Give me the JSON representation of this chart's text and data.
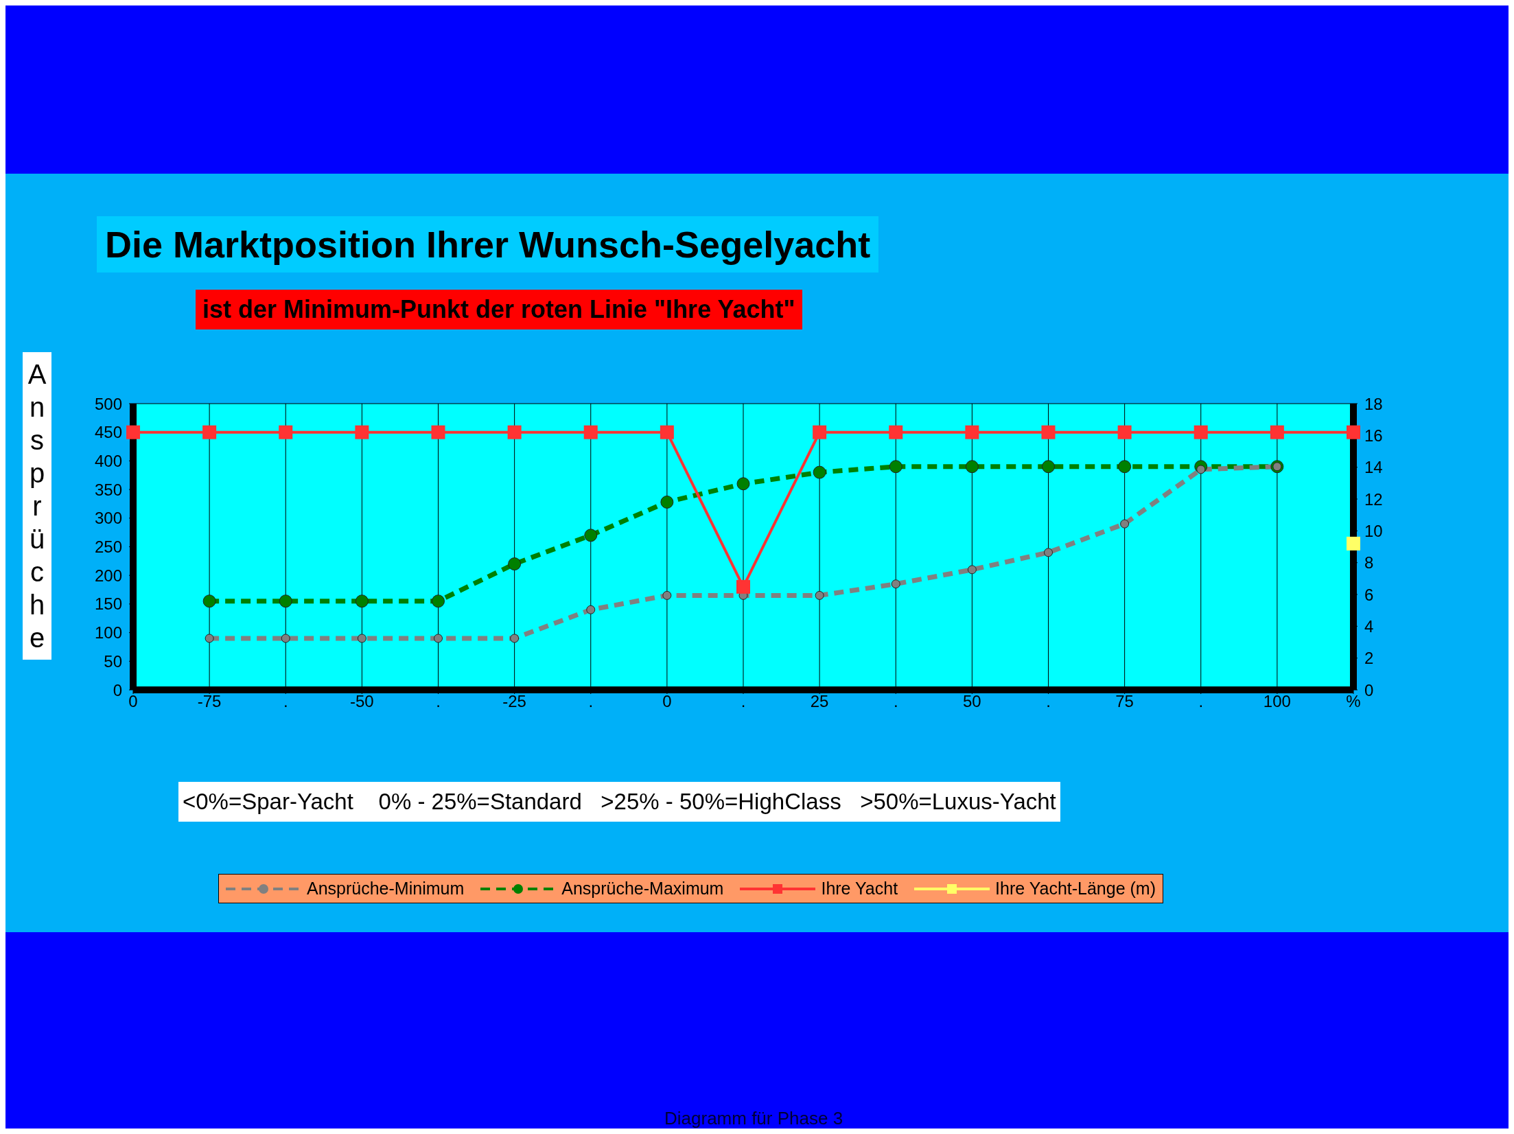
{
  "chart_data": {
    "type": "line",
    "title": "Die Marktposition Ihrer Wunsch-Segelyacht",
    "subtitle": "ist der Minimum-Punkt der roten Linie \"Ihre Yacht\"",
    "ylabel": "Ansprüche",
    "annotations": [
      "<0%=Spar-Yacht    0% - 25%=Standard   >25% - 50%=HighClass   >50%=Luxus-Yacht",
      "Diagramm für Phase 3"
    ],
    "categories": [
      "0",
      "-75",
      ".",
      "-50",
      ".",
      "-25",
      ".",
      "0",
      ".",
      "25",
      ".",
      "50",
      ".",
      "75",
      ".",
      "100",
      "%"
    ],
    "series": [
      {
        "name": "Ansprüche-Minimum",
        "color": "#808080",
        "marker": "circle",
        "line_style": "dashed",
        "values": [
          null,
          90,
          90,
          90,
          90,
          90,
          140,
          165,
          165,
          165,
          185,
          210,
          240,
          290,
          385,
          390,
          null
        ]
      },
      {
        "name": "Ansprüche-Maximum",
        "color": "#008000",
        "marker": "circle",
        "line_style": "dashed",
        "values": [
          null,
          155,
          155,
          155,
          155,
          220,
          270,
          328,
          360,
          380,
          390,
          390,
          390,
          390,
          390,
          390,
          null
        ]
      },
      {
        "name": "Ihre Yacht",
        "color": "#ff3333",
        "marker": "square",
        "line_style": "solid",
        "values": [
          450,
          450,
          450,
          450,
          450,
          450,
          450,
          450,
          180,
          450,
          450,
          450,
          450,
          450,
          450,
          450,
          450
        ]
      },
      {
        "name": "Ihre Yacht-Länge (m)",
        "color": "#ffff66",
        "marker": "square",
        "line_style": "solid",
        "axis": "y2",
        "values": [
          null,
          null,
          null,
          null,
          null,
          null,
          null,
          null,
          null,
          null,
          null,
          null,
          null,
          null,
          null,
          null,
          9.2
        ]
      }
    ],
    "ylim": [
      0,
      500
    ],
    "yticks": [
      0,
      50,
      100,
      150,
      200,
      250,
      300,
      350,
      400,
      450,
      500
    ],
    "y2lim": [
      0,
      18
    ],
    "y2ticks": [
      0,
      2,
      4,
      6,
      8,
      10,
      12,
      14,
      16,
      18
    ],
    "grid": true,
    "legend": "bottom"
  }
}
